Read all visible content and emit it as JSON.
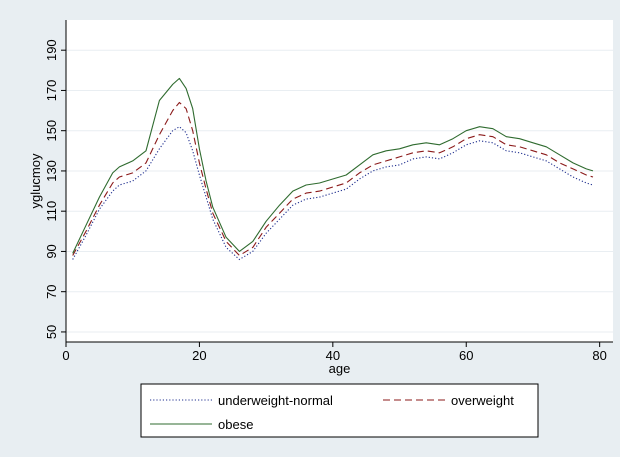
{
  "colors": {
    "background": "#e8eef2",
    "plot_bg": "#ffffff",
    "grid": "#e9eef2",
    "axis": "#000000"
  },
  "chart_data": {
    "type": "line",
    "title": "",
    "xlabel": "age",
    "ylabel": "yglucmoy",
    "xlim": [
      0,
      82
    ],
    "ylim": [
      45,
      205
    ],
    "x_ticks": [
      0,
      20,
      40,
      60,
      80
    ],
    "y_ticks": [
      50,
      70,
      90,
      110,
      130,
      150,
      170,
      190
    ],
    "grid": "horizontal",
    "legend_position": "bottom",
    "series": [
      {
        "name": "underweight-normal",
        "color": "#1f2f8f",
        "dash": "dotted",
        "points": [
          [
            1,
            86
          ],
          [
            3,
            98
          ],
          [
            5,
            111
          ],
          [
            7,
            120
          ],
          [
            8,
            123
          ],
          [
            10,
            125
          ],
          [
            12,
            130
          ],
          [
            14,
            141
          ],
          [
            16,
            150
          ],
          [
            17,
            152
          ],
          [
            18,
            149
          ],
          [
            19,
            140
          ],
          [
            20,
            128
          ],
          [
            21,
            117
          ],
          [
            22,
            106
          ],
          [
            24,
            92
          ],
          [
            26,
            86
          ],
          [
            28,
            90
          ],
          [
            30,
            99
          ],
          [
            32,
            106
          ],
          [
            34,
            113
          ],
          [
            36,
            116
          ],
          [
            38,
            117
          ],
          [
            40,
            119
          ],
          [
            42,
            121
          ],
          [
            44,
            126
          ],
          [
            46,
            130
          ],
          [
            48,
            132
          ],
          [
            50,
            133
          ],
          [
            52,
            136
          ],
          [
            54,
            137
          ],
          [
            56,
            136
          ],
          [
            58,
            139
          ],
          [
            60,
            143
          ],
          [
            62,
            145
          ],
          [
            64,
            144
          ],
          [
            66,
            140
          ],
          [
            68,
            139
          ],
          [
            70,
            137
          ],
          [
            72,
            135
          ],
          [
            74,
            131
          ],
          [
            76,
            127
          ],
          [
            78,
            124
          ],
          [
            79,
            123
          ]
        ]
      },
      {
        "name": "overweight",
        "color": "#8b1a1a",
        "dash": "dashed",
        "points": [
          [
            1,
            88
          ],
          [
            3,
            100
          ],
          [
            5,
            113
          ],
          [
            7,
            124
          ],
          [
            8,
            127
          ],
          [
            10,
            129
          ],
          [
            12,
            134
          ],
          [
            14,
            148
          ],
          [
            16,
            160
          ],
          [
            17,
            164
          ],
          [
            18,
            161
          ],
          [
            19,
            150
          ],
          [
            20,
            134
          ],
          [
            21,
            121
          ],
          [
            22,
            109
          ],
          [
            24,
            95
          ],
          [
            26,
            88
          ],
          [
            28,
            92
          ],
          [
            30,
            102
          ],
          [
            32,
            109
          ],
          [
            34,
            116
          ],
          [
            36,
            119
          ],
          [
            38,
            120
          ],
          [
            40,
            122
          ],
          [
            42,
            124
          ],
          [
            44,
            129
          ],
          [
            46,
            133
          ],
          [
            48,
            135
          ],
          [
            50,
            137
          ],
          [
            52,
            139
          ],
          [
            54,
            140
          ],
          [
            56,
            139
          ],
          [
            58,
            142
          ],
          [
            60,
            146
          ],
          [
            62,
            148
          ],
          [
            64,
            147
          ],
          [
            66,
            143
          ],
          [
            68,
            142
          ],
          [
            70,
            140
          ],
          [
            72,
            138
          ],
          [
            74,
            134
          ],
          [
            76,
            131
          ],
          [
            78,
            128
          ],
          [
            79,
            127
          ]
        ]
      },
      {
        "name": "obese",
        "color": "#2f6b2f",
        "dash": "solid",
        "points": [
          [
            1,
            89
          ],
          [
            3,
            103
          ],
          [
            5,
            117
          ],
          [
            7,
            129
          ],
          [
            8,
            132
          ],
          [
            10,
            135
          ],
          [
            12,
            140
          ],
          [
            14,
            165
          ],
          [
            16,
            173
          ],
          [
            17,
            176
          ],
          [
            18,
            171
          ],
          [
            19,
            161
          ],
          [
            20,
            141
          ],
          [
            21,
            125
          ],
          [
            22,
            112
          ],
          [
            24,
            97
          ],
          [
            26,
            90
          ],
          [
            28,
            95
          ],
          [
            30,
            105
          ],
          [
            32,
            113
          ],
          [
            34,
            120
          ],
          [
            36,
            123
          ],
          [
            38,
            124
          ],
          [
            40,
            126
          ],
          [
            42,
            128
          ],
          [
            44,
            133
          ],
          [
            46,
            138
          ],
          [
            48,
            140
          ],
          [
            50,
            141
          ],
          [
            52,
            143
          ],
          [
            54,
            144
          ],
          [
            56,
            143
          ],
          [
            58,
            146
          ],
          [
            60,
            150
          ],
          [
            62,
            152
          ],
          [
            64,
            151
          ],
          [
            66,
            147
          ],
          [
            68,
            146
          ],
          [
            70,
            144
          ],
          [
            72,
            142
          ],
          [
            74,
            138
          ],
          [
            76,
            134
          ],
          [
            78,
            131
          ],
          [
            79,
            130
          ]
        ]
      }
    ]
  }
}
